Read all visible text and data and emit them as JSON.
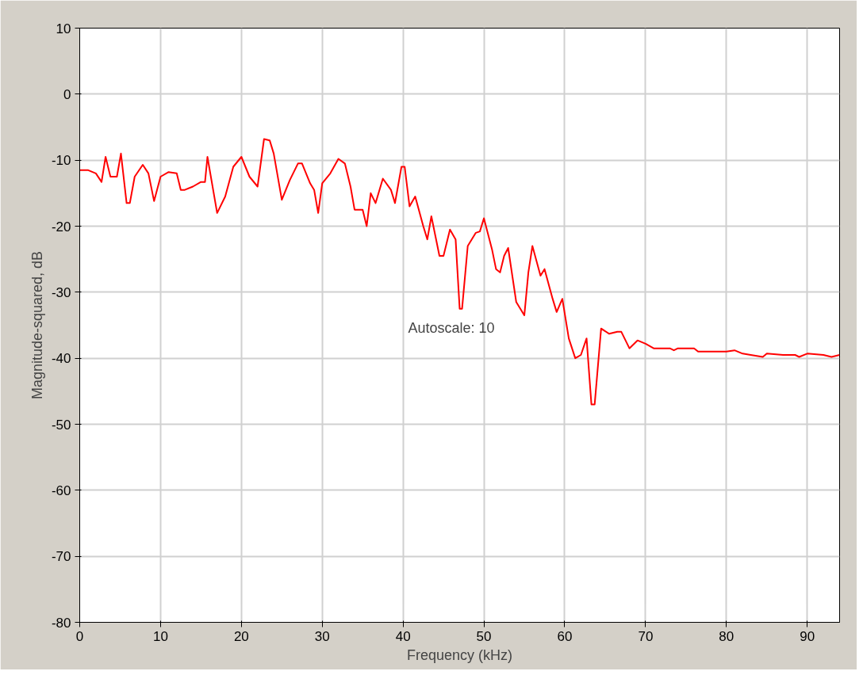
{
  "chart_data": {
    "type": "line",
    "xlabel": "Frequency (kHz)",
    "ylabel": "Magnitude-squared, dB",
    "annotations": [
      "Autoscale: 10"
    ],
    "xlim": [
      0,
      94
    ],
    "ylim": [
      -80,
      10
    ],
    "xticks": [
      0,
      10,
      20,
      30,
      40,
      50,
      60,
      70,
      80,
      90
    ],
    "yticks": [
      -80,
      -70,
      -60,
      -50,
      -40,
      -30,
      -20,
      -10,
      0,
      10
    ],
    "grid": true,
    "line_style": "solid",
    "series": [
      {
        "color": "#ff0000",
        "x": [
          0,
          1,
          2,
          2.7,
          3.2,
          3.8,
          4.6,
          5.1,
          5.8,
          6.2,
          6.8,
          7.8,
          8.5,
          9.2,
          10,
          11,
          12,
          12.5,
          13,
          14,
          15,
          15.5,
          15.8,
          17,
          18,
          19,
          20,
          21,
          22,
          22.8,
          23.5,
          24,
          25,
          26,
          27,
          27.5,
          28.5,
          29,
          29.5,
          30,
          31,
          32,
          32.8,
          33.5,
          34,
          35,
          35.5,
          36,
          36.6,
          37.5,
          38.5,
          39,
          39.8,
          40.2,
          40.8,
          41.5,
          42.5,
          43,
          43.5,
          44.5,
          45,
          45.8,
          46.5,
          47,
          47.3,
          48,
          49,
          49.5,
          50,
          51,
          51.5,
          52,
          52.5,
          53,
          54,
          55,
          55.5,
          56,
          57,
          57.5,
          58.5,
          59,
          59.7,
          60.5,
          61.3,
          62,
          62.7,
          63.3,
          63.7,
          64.5,
          65.5,
          66.5,
          67,
          68,
          69,
          70,
          71,
          73,
          73.5,
          74,
          76,
          76.5,
          80,
          81,
          82,
          83,
          84.5,
          85,
          87,
          88.5,
          89,
          90,
          92,
          93,
          94
        ],
        "values": [
          -11.5,
          -11.5,
          -12,
          -13.3,
          -9.5,
          -12.5,
          -12.5,
          -9,
          -16.5,
          -16.5,
          -12.5,
          -10.7,
          -12,
          -16.2,
          -12.5,
          -11.8,
          -12,
          -14.5,
          -14.5,
          -14,
          -13.3,
          -13.3,
          -9.5,
          -18,
          -15.5,
          -11,
          -9.5,
          -12.5,
          -14,
          -6.8,
          -7,
          -9,
          -16,
          -13,
          -10.5,
          -10.5,
          -13.5,
          -14.5,
          -18,
          -13.5,
          -12,
          -9.8,
          -10.5,
          -14,
          -17.5,
          -17.5,
          -20,
          -15,
          -16.5,
          -12.8,
          -14.5,
          -16.5,
          -11,
          -11,
          -17,
          -15.5,
          -20,
          -22,
          -18.5,
          -24.5,
          -24.5,
          -20.5,
          -22,
          -32.5,
          -32.5,
          -23,
          -21,
          -20.8,
          -18.8,
          -23.5,
          -26.5,
          -27,
          -24.5,
          -23.3,
          -31.5,
          -33.5,
          -27,
          -23,
          -27.5,
          -26.5,
          -31,
          -33,
          -31,
          -37,
          -40,
          -39.5,
          -37,
          -47,
          -47,
          -35.5,
          -36.3,
          -36,
          -36,
          -38.5,
          -37.3,
          -37.8,
          -38.5,
          -38.5,
          -38.8,
          -38.5,
          -38.5,
          -39,
          -39,
          -38.8,
          -39.3,
          -39.5,
          -39.8,
          -39.3,
          -39.5,
          -39.5,
          -39.8,
          -39.3,
          -39.5,
          -39.8,
          -39.5
        ]
      }
    ]
  }
}
